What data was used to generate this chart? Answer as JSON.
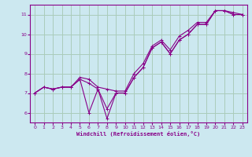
{
  "xlabel": "Windchill (Refroidissement éolien,°C)",
  "bg_color": "#cce8f0",
  "grid_color": "#aaccbb",
  "line_color": "#880088",
  "xlim": [
    -0.5,
    23.5
  ],
  "ylim": [
    5.5,
    11.5
  ],
  "xticks": [
    0,
    1,
    2,
    3,
    4,
    5,
    6,
    7,
    8,
    9,
    10,
    11,
    12,
    13,
    14,
    15,
    16,
    17,
    18,
    19,
    20,
    21,
    22,
    23
  ],
  "yticks": [
    6,
    7,
    8,
    9,
    10,
    11
  ],
  "series": [
    [
      7.0,
      7.3,
      7.2,
      7.3,
      7.3,
      7.7,
      6.0,
      7.2,
      5.7,
      7.0,
      7.0,
      7.8,
      8.3,
      9.3,
      9.6,
      9.0,
      9.7,
      10.0,
      10.5,
      10.5,
      11.2,
      11.2,
      11.0,
      11.0
    ],
    [
      7.0,
      7.3,
      7.2,
      7.3,
      7.3,
      7.7,
      7.5,
      7.2,
      6.2,
      7.0,
      7.0,
      7.8,
      8.3,
      9.3,
      9.6,
      9.0,
      9.7,
      10.0,
      10.5,
      10.5,
      11.2,
      11.2,
      11.0,
      11.0
    ],
    [
      7.0,
      7.3,
      7.2,
      7.3,
      7.3,
      7.8,
      7.7,
      7.3,
      7.2,
      7.1,
      7.1,
      8.0,
      8.5,
      9.4,
      9.7,
      9.2,
      9.9,
      10.2,
      10.6,
      10.6,
      11.2,
      11.2,
      11.1,
      11.0
    ]
  ]
}
